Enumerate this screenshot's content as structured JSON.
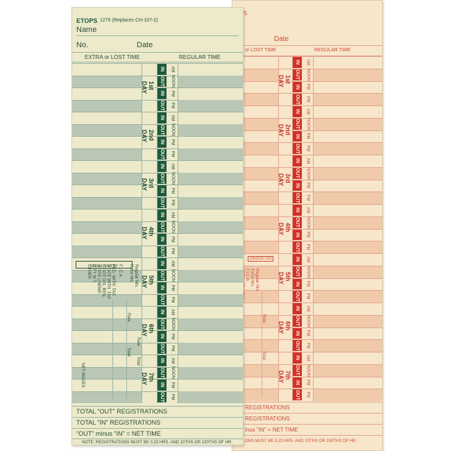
{
  "cards": {
    "green": {
      "brand": "TOPS",
      "form_id": "1275 (Replaces CH-107-2)",
      "name_label": "Name",
      "no_label": "No.",
      "date_label": "Date",
      "extra_header": "EXTRA or LOST TIME",
      "regular_header": "REGULAR TIME",
      "days": [
        "1st DAY",
        "2nd DAY",
        "3rd DAY",
        "4th DAY",
        "5th DAY",
        "6th DAY",
        "7th DAY"
      ],
      "deductions_title": "DEDUCTIONS",
      "deductions": [
        "Regular Hrs.",
        "Extra Hrs.",
        "F.I.C.A.",
        "FED. WITH. TAX",
        "STATE WITH. TAX",
        "STATE DIS. BEN.",
        "STATE UNEMP.",
        "CITY W.T.",
        "OTHER"
      ],
      "rate_label": "Rate",
      "total_label": "Total",
      "net_wages": "NET WAGES",
      "total_out": "TOTAL \"OUT\" REGISTRATIONS",
      "total_in": "TOTAL \"IN\" REGISTRATIONS",
      "net_time": "\"OUT\" minus \"IN\" = NET TIME",
      "note": "NOTE: REGISTRATIONS MUST BE 0.23 HRS. AND 10THS OR 100THS OF HR."
    },
    "red": {
      "form_id": "275",
      "date_label": "Date",
      "extra_header": "or LOST TIME",
      "regular_header": "REGULAR TIME",
      "days": [
        "1st DAY",
        "2nd DAY",
        "3rd DAY",
        "4th DAY",
        "5th DAY",
        "6th DAY",
        "7th DAY"
      ],
      "deductions_title": "DEDUCTIO",
      "deductions": [
        "Regular Hrs.",
        "Extra Hrs.",
        "F.I.C.A.",
        "FED. WITH. TAX"
      ],
      "rate_label": "Rate",
      "total_label": "Total",
      "total_out": "REGISTRATIONS",
      "total_in": "REGISTRATIONS",
      "net_time": "inus \"IN\" = NET TIME",
      "note": "ONS MUST BE 0.23 HRS. AND 10THS OR 100THS OF HR."
    }
  },
  "slot_labels": {
    "in": "IN",
    "out": "OUT",
    "am": "AM",
    "noon": "NOON",
    "pm": "PM"
  },
  "colors": {
    "green_card": "#eceacb",
    "green_ink": "#1d5a3c",
    "red_card": "#f7e6c9",
    "red_ink": "#d2302a"
  }
}
